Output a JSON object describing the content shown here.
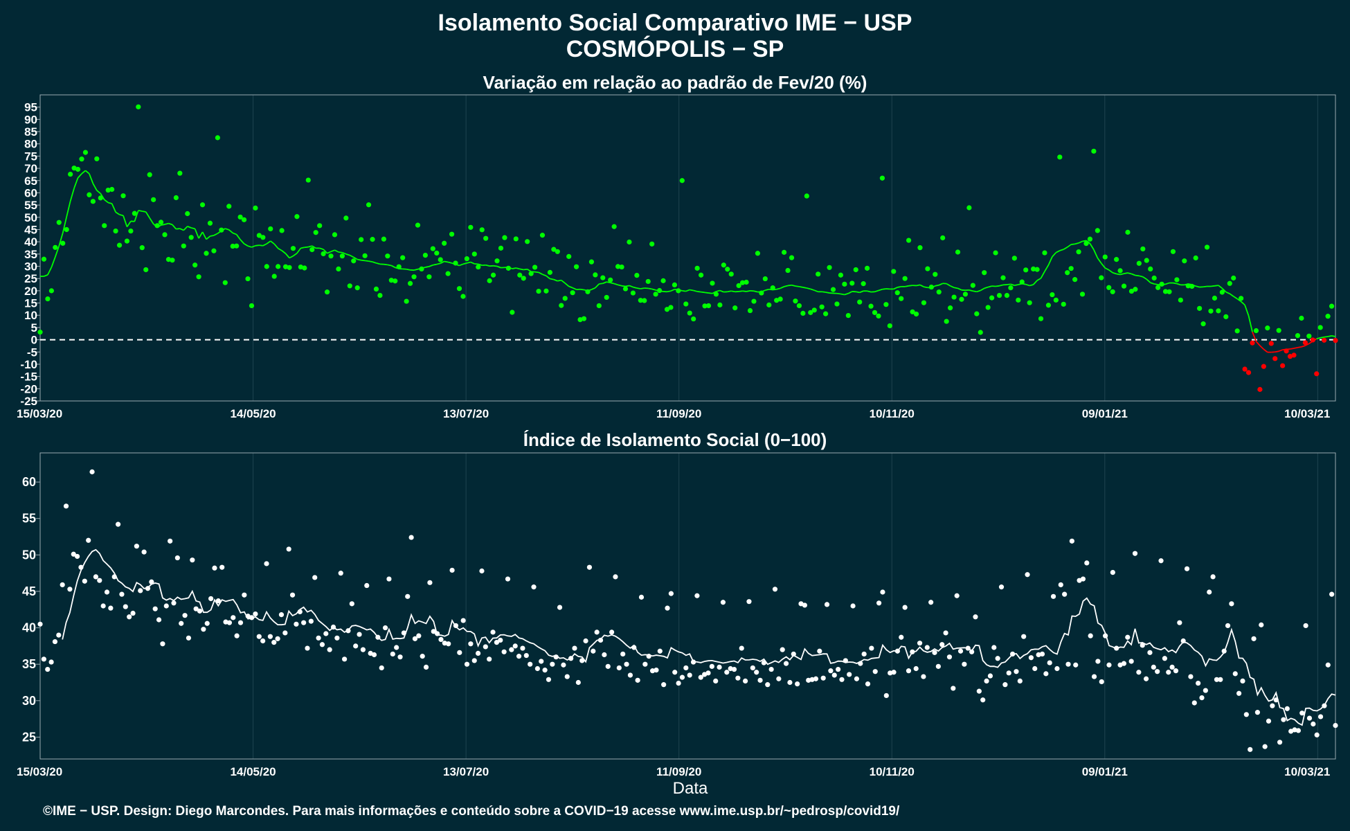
{
  "header": {
    "title": "Isolamento Social Comparativo IME − USP",
    "subtitle": "COSMÓPOLIS − SP"
  },
  "footer": {
    "xlabel": "Data",
    "credit": "©IME − USP. Design: Diego Marcondes. Para mais informações e conteúdo sobre a COVID−19 acesse www.ime.usp.br/~pedrosp/covid19/"
  },
  "colors": {
    "background": "#022834",
    "positive": "#00ff00",
    "negative": "#ff0000",
    "index": "#ffffff"
  },
  "chart_data": [
    {
      "type": "scatter",
      "title": "Variação em relação ao padrão de Fev/20 (%)",
      "x_start": "15/03/20",
      "x_end": "15/03/21",
      "x_ticks": [
        "15/03/20",
        "14/05/20",
        "13/07/20",
        "11/09/20",
        "10/11/20",
        "09/01/21",
        "10/03/21"
      ],
      "ylim": [
        -25,
        100
      ],
      "y_ticks": [
        -25,
        -20,
        -15,
        -10,
        -5,
        0,
        5,
        10,
        15,
        20,
        25,
        30,
        35,
        40,
        45,
        50,
        55,
        60,
        65,
        70,
        75,
        80,
        85,
        90,
        95
      ],
      "reference_line": 0,
      "points_color_rule": "green when ≥ 0, red when < 0",
      "trend_line": "7-day moving average",
      "values": [
        3.1,
        32.9,
        16.7,
        20.0,
        37.7,
        47.9,
        39.4,
        45.0,
        67.6,
        70.1,
        69.6,
        73.8,
        76.5,
        59.2,
        56.5,
        73.9,
        57.9,
        46.6,
        61.1,
        61.4,
        44.4,
        38.6,
        58.8,
        40.3,
        44.4,
        51.6,
        95.1,
        37.6,
        28.6,
        67.4,
        57.2,
        46.6,
        48.0,
        42.9,
        32.8,
        32.5,
        58.0,
        68.0,
        38.3,
        51.5,
        41.8,
        30.5,
        25.7,
        55.1,
        35.3,
        47.6,
        36.3,
        82.5,
        44.8,
        23.3,
        54.5,
        38.2,
        38.3,
        50.1,
        49.0,
        24.9,
        13.9,
        53.8,
        42.6,
        41.8,
        29.9,
        45.3,
        25.9,
        29.9,
        44.6,
        29.8,
        29.5,
        37.3,
        50.3,
        29.7,
        29.3,
        65.2,
        36.8,
        43.8,
        46.6,
        35.1,
        19.5,
        34.2,
        42.9,
        28.9,
        34.2,
        49.7,
        22.0,
        32.2,
        21.2,
        40.9,
        34.3,
        55.1,
        41.0,
        20.7,
        18.1,
        41.1,
        34.2,
        24.3,
        24.0,
        29.8,
        33.5,
        15.7,
        23.0,
        25.7,
        46.8,
        28.9,
        34.5,
        25.7,
        37.2,
        35.4,
        32.7,
        39.4,
        27.0,
        43.1,
        31.3,
        20.9,
        17.7,
        33.1,
        45.9,
        35.0,
        29.7,
        44.9,
        41.4,
        24.1,
        26.4,
        32.2,
        37.4,
        41.7,
        29.2,
        11.2,
        41.2,
        26.4,
        25.1,
        40.1,
        27.0,
        29.6,
        19.8,
        42.7,
        19.9,
        27.5,
        36.9,
        36.0,
        14.0,
        16.9,
        34.0,
        19.2,
        29.8,
        8.2,
        8.6,
        19.6,
        31.8,
        26.5,
        13.9,
        25.3,
        17.3,
        24.4,
        46.2,
        29.9,
        29.7,
        20.8,
        39.9,
        19.1,
        26.3,
        16.1,
        16.0,
        23.8,
        39.1,
        18.6,
        20.1,
        24.1,
        12.4,
        13.2,
        22.4,
        20.0,
        65.0,
        14.6,
        10.9,
        8.5,
        29.2,
        26.4,
        13.8,
        13.9,
        23.1,
        18.6,
        14.2,
        30.5,
        28.8,
        26.8,
        13.0,
        22.1,
        23.3,
        23.5,
        11.9,
        15.7,
        35.3,
        19.1,
        24.9,
        14.2,
        21.2,
        16.1,
        16.6,
        35.7,
        28.3,
        33.5,
        15.8,
        13.9,
        10.8,
        58.7,
        11.1,
        12.1,
        26.8,
        13.4,
        10.6,
        29.5,
        20.5,
        14.6,
        26.4,
        22.7,
        9.9,
        23.1,
        28.6,
        15.4,
        22.9,
        29.2,
        13.7,
        11.1,
        9.7,
        66.0,
        14.4,
        5.7,
        27.9,
        19.2,
        16.8,
        25.0,
        40.6,
        11.4,
        10.5,
        37.6,
        15.1,
        29.0,
        21.5,
        26.7,
        19.5,
        41.6,
        7.5,
        13.0,
        17.4,
        35.8,
        16.5,
        18.6,
        53.9,
        22.2,
        10.6,
        3.0,
        27.4,
        13.2,
        17.1,
        35.5,
        18.1,
        25.3,
        18.1,
        21.2,
        33.3,
        16.2,
        23.6,
        28.5,
        15.1,
        28.9,
        28.7,
        8.6,
        35.5,
        14.1,
        18.4,
        16.2,
        74.6,
        14.5,
        27.4,
        29.1,
        24.6,
        35.9,
        18.6,
        39.3,
        41.1,
        77.0,
        44.6,
        25.3,
        33.8,
        21.3,
        19.6,
        32.8,
        28.2,
        21.9,
        43.9,
        19.8,
        20.6,
        31.2,
        37.1,
        32.4,
        28.9,
        25.2,
        21.3,
        22.7,
        19.7,
        19.6,
        36.0,
        24.5,
        16.2,
        32.2,
        22.0,
        21.8,
        33.4,
        12.8,
        6.5,
        37.8,
        11.7,
        17.0,
        11.8,
        19.4,
        9.4,
        23.0,
        25.2,
        3.6,
        16.9,
        -12.0,
        -13.4,
        -1.3,
        3.7,
        -20.3,
        -10.9,
        4.8,
        -1.5,
        -7.7,
        3.8,
        -10.6,
        -4.6,
        -6.8,
        -6.3,
        1.7,
        8.8,
        -1.2,
        1.5,
        -0.1,
        -13.9,
        5.0,
        -0.2,
        9.6,
        13.7,
        -0.3
      ],
      "trend": [
        25.9,
        25.9,
        26.5,
        29.6,
        33.8,
        38.3,
        43.6,
        50.2,
        56.6,
        61.9,
        66.1,
        67.8,
        69.1,
        67.8,
        63.8,
        61.0,
        59.7,
        57.2,
        56.0,
        55.6,
        52.1,
        51.1,
        50.7,
        46.1,
        48.4,
        48.3,
        52.8,
        52.5,
        52.2,
        49.7,
        47.3,
        45.9,
        46.8,
        47.1,
        47.5,
        47.0,
        45.2,
        45.4,
        44.7,
        46.3,
        45.7,
        45.3,
        41.4,
        44.0,
        41.0,
        42.3,
        42.6,
        43.4,
        44.5,
        45.4,
        44.9,
        43.6,
        43.0,
        40.9,
        39.2,
        38.3,
        37.8,
        38.4,
        38.6,
        38.4,
        39.2,
        40.3,
        39.1,
        37.3,
        36.4,
        35.2,
        33.4,
        34.2,
        35.3,
        37.4,
        37.7,
        37.9,
        38.3,
        37.4,
        37.4,
        36.9,
        35.3,
        36.0,
        36.6,
        35.8,
        35.6,
        35.0,
        34.5,
        33.7,
        32.8,
        32.5,
        32.3,
        32.1,
        31.8,
        31.3,
        30.9,
        30.8,
        30.6,
        30.3,
        29.5,
        29.0,
        28.9,
        28.8,
        28.5,
        28.4,
        28.8,
        29.2,
        29.6,
        29.9,
        30.5,
        30.8,
        31.2,
        32.0,
        31.7,
        31.3,
        30.8,
        30.3,
        30.9,
        31.3,
        31.7,
        31.0,
        30.9,
        30.4,
        30.5,
        30.1,
        30.2,
        30.0,
        29.4,
        29.5,
        29.6,
        29.0,
        29.3,
        28.9,
        28.6,
        28.8,
        27.8,
        27.7,
        27.5,
        26.7,
        26.1,
        24.9,
        24.6,
        24.0,
        24.3,
        23.1,
        21.8,
        21.2,
        20.5,
        20.6,
        20.4,
        20.0,
        20.5,
        21.2,
        22.8,
        23.0,
        23.6,
        23.3,
        22.9,
        22.4,
        22.0,
        21.8,
        22.1,
        21.5,
        21.1,
        20.8,
        21.1,
        21.0,
        20.7,
        20.3,
        19.9,
        19.7,
        19.6,
        19.9,
        20.6,
        20.4,
        20.0,
        19.8,
        20.4,
        20.1,
        19.7,
        19.5,
        19.3,
        19.1,
        18.9,
        19.7,
        20.1,
        19.5,
        19.6,
        19.9,
        19.6,
        19.7,
        19.9,
        19.7,
        20.0,
        19.9,
        19.5,
        19.6,
        20.2,
        20.6,
        20.4,
        20.6,
        21.0,
        21.7,
        22.1,
        22.3,
        21.9,
        21.7,
        21.4,
        21.1,
        20.7,
        20.2,
        19.6,
        19.6,
        19.4,
        19.1,
        19.0,
        18.9,
        18.7,
        18.4,
        18.9,
        19.7,
        19.6,
        19.3,
        19.9,
        19.9,
        19.5,
        19.6,
        20.1,
        20.6,
        20.8,
        20.7,
        20.7,
        21.4,
        21.7,
        21.7,
        22.0,
        22.2,
        22.1,
        22.4,
        21.6,
        21.3,
        21.2,
        22.0,
        22.3,
        23.0,
        22.9,
        22.0,
        21.3,
        21.0,
        20.3,
        20.2,
        20.3,
        19.9,
        19.6,
        20.1,
        21.0,
        21.5,
        21.9,
        21.8,
        22.0,
        22.4,
        22.5,
        22.7,
        22.2,
        22.5,
        22.9,
        22.6,
        22.1,
        22.5,
        24.2,
        25.1,
        27.9,
        30.5,
        33.9,
        35.6,
        36.4,
        36.9,
        37.8,
        38.9,
        39.1,
        39.5,
        40.2,
        40.5,
        39.3,
        36.8,
        33.4,
        31.2,
        29.3,
        28.5,
        27.4,
        26.9,
        26.6,
        27.0,
        27.3,
        26.9,
        26.3,
        26.1,
        25.7,
        24.7,
        23.3,
        22.8,
        22.5,
        22.4,
        22.7,
        23.2,
        23.2,
        22.9,
        22.4,
        22.4,
        22.8,
        22.5,
        21.9,
        21.5,
        21.6,
        21.8,
        21.8,
        22.0,
        22.2,
        21.0,
        19.5,
        18.8,
        17.7,
        16.7,
        15.6,
        14.2,
        9.8,
        3.2,
        -0.7,
        -2.4,
        -3.9,
        -5.1,
        -5.1,
        -5.0,
        -4.7,
        -4.1,
        -3.9,
        -3.8,
        -3.5,
        -3.2,
        -2.9,
        -2.4,
        -1.6,
        -0.6,
        0.4,
        0.8,
        1.1,
        1.3,
        1.6,
        1.3
      ]
    },
    {
      "type": "scatter",
      "title": "Índice de Isolamento Social (0−100)",
      "x_start": "15/03/20",
      "x_end": "15/03/21",
      "x_ticks": [
        "15/03/20",
        "14/05/20",
        "13/07/20",
        "11/09/20",
        "10/11/20",
        "09/01/21",
        "10/03/21"
      ],
      "ylim": [
        22,
        64
      ],
      "y_ticks": [
        25,
        30,
        35,
        40,
        45,
        50,
        55,
        60
      ],
      "trend_line": "7-day moving average",
      "values": [
        40.5,
        35.7,
        34.3,
        35.3,
        38.1,
        39.0,
        45.9,
        56.7,
        45.3,
        50.1,
        49.8,
        48.3,
        46.4,
        52.0,
        61.4,
        47.0,
        46.5,
        43.0,
        44.9,
        42.7,
        47.0,
        54.2,
        44.6,
        42.9,
        41.5,
        42.0,
        51.2,
        45.1,
        50.4,
        45.4,
        46.3,
        42.6,
        41.1,
        37.8,
        43.0,
        51.9,
        43.4,
        49.6,
        40.6,
        41.7,
        38.6,
        49.3,
        42.6,
        42.3,
        39.8,
        40.6,
        44.0,
        48.2,
        43.7,
        48.3,
        40.8,
        40.7,
        41.4,
        38.9,
        40.7,
        44.5,
        41.6,
        41.4,
        41.9,
        38.8,
        38.2,
        48.8,
        38.8,
        38.0,
        38.5,
        41.8,
        39.3,
        50.8,
        44.5,
        40.5,
        42.2,
        40.7,
        37.2,
        40.9,
        46.9,
        38.6,
        37.7,
        39.2,
        37.0,
        40.1,
        38.6,
        47.5,
        35.7,
        39.6,
        43.3,
        37.5,
        39.1,
        37.0,
        45.8,
        36.5,
        36.3,
        38.7,
        34.5,
        40.0,
        46.7,
        36.4,
        37.3,
        36.0,
        39.3,
        44.3,
        52.4,
        38.5,
        38.9,
        36.1,
        34.6,
        46.2,
        39.5,
        39.2,
        38.4,
        37.9,
        37.8,
        47.9,
        40.3,
        36.6,
        41.0,
        35.0,
        37.8,
        35.5,
        36.5,
        47.8,
        37.4,
        35.7,
        39.4,
        38.0,
        38.3,
        36.7,
        46.7,
        37.0,
        37.5,
        36.1,
        37.2,
        36.2,
        35.0,
        45.6,
        34.4,
        35.4,
        34.2,
        32.9,
        35.0,
        36.0,
        42.8,
        34.9,
        33.3,
        35.8,
        37.2,
        32.5,
        35.5,
        38.2,
        48.3,
        36.8,
        39.4,
        38.3,
        36.3,
        34.7,
        39.4,
        47.0,
        34.5,
        36.4,
        35.0,
        33.5,
        37.3,
        32.8,
        44.2,
        35.0,
        36.1,
        34.1,
        34.2,
        36.8,
        32.2,
        42.7,
        44.7,
        33.9,
        32.4,
        33.2,
        34.5,
        33.5,
        35.3,
        44.4,
        33.2,
        33.6,
        33.8,
        34.7,
        32.7,
        34.6,
        43.5,
        33.9,
        34.4,
        34.3,
        33.1,
        37.2,
        32.7,
        43.6,
        34.5,
        33.9,
        32.8,
        35.2,
        32.2,
        34.3,
        45.3,
        33.0,
        37.0,
        35.1,
        32.5,
        36.4,
        32.3,
        43.3,
        43.1,
        32.8,
        32.9,
        33.0,
        36.8,
        33.1,
        43.2,
        34.1,
        33.5,
        34.3,
        32.9,
        35.5,
        33.6,
        43.0,
        33.0,
        35.1,
        36.4,
        32.3,
        37.2,
        34.0,
        43.4,
        44.9,
        30.7,
        33.8,
        33.9,
        36.8,
        38.7,
        42.8,
        34.1,
        36.7,
        34.4,
        37.9,
        33.3,
        37.3,
        43.5,
        36.6,
        34.7,
        37.7,
        39.3,
        36.0,
        31.7,
        44.4,
        36.8,
        35.0,
        37.2,
        36.7,
        41.5,
        31.3,
        30.1,
        32.7,
        33.4,
        37.3,
        35.8,
        45.6,
        32.2,
        33.8,
        36.4,
        34.0,
        32.7,
        38.8,
        47.3,
        35.9,
        34.4,
        36.3,
        36.4,
        33.7,
        35.2,
        44.3,
        34.4,
        45.9,
        44.6,
        35.0,
        51.9,
        34.9,
        46.5,
        46.7,
        48.9,
        38.9,
        33.3,
        35.4,
        32.6,
        38.9,
        34.9,
        47.6,
        37.2,
        34.9,
        35.1,
        38.7,
        35.4,
        50.2,
        33.9,
        37.6,
        33.0,
        36.6,
        34.6,
        34.0,
        49.2,
        35.8,
        33.9,
        34.6,
        34.1,
        40.7,
        38.2,
        48.1,
        33.3,
        29.7,
        32.4,
        30.4,
        31.4,
        44.9,
        47.0,
        32.9,
        32.9,
        36.8,
        40.3,
        43.3,
        33.7,
        31.0,
        32.7,
        28.1,
        23.3,
        38.5,
        28.4,
        40.4,
        23.7,
        27.2,
        29.3,
        30.1,
        24.3,
        27.4,
        28.9,
        25.8,
        26.0,
        25.9,
        28.3,
        40.3,
        27.6,
        26.8,
        25.3,
        27.8,
        29.3,
        34.9,
        44.6,
        26.6
      ]
    }
  ]
}
